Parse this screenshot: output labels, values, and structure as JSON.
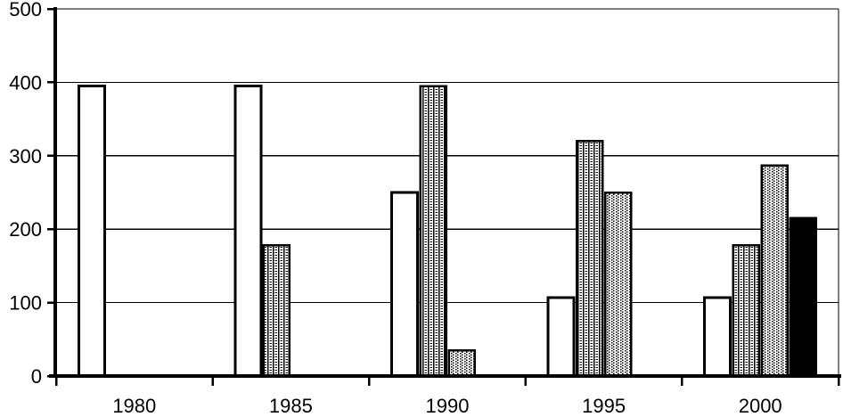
{
  "chart_data": {
    "type": "bar",
    "title": "",
    "xlabel": "",
    "ylabel": "",
    "categories": [
      "1980",
      "1985",
      "1990",
      "1995",
      "2000"
    ],
    "series": [
      {
        "name": "series-1-white",
        "style": "white",
        "values": [
          395,
          395,
          250,
          107,
          107
        ]
      },
      {
        "name": "series-2-ladder-dots",
        "style": "ladder-dots",
        "values": [
          null,
          178,
          395,
          320,
          178
        ]
      },
      {
        "name": "series-3-diamond-dots",
        "style": "diamond-dots",
        "values": [
          null,
          null,
          35,
          250,
          287
        ]
      },
      {
        "name": "series-4-black",
        "style": "black",
        "values": [
          null,
          null,
          null,
          null,
          215
        ]
      }
    ],
    "ylim": [
      0,
      500
    ],
    "yticks": [
      0,
      100,
      200,
      300,
      400,
      500
    ],
    "grid": "horizontal",
    "legend": "none",
    "plot_border": "top-right-thin, left-bottom-thick-axes"
  },
  "colors": {
    "foreground": "#000000",
    "background": "#ffffff"
  }
}
